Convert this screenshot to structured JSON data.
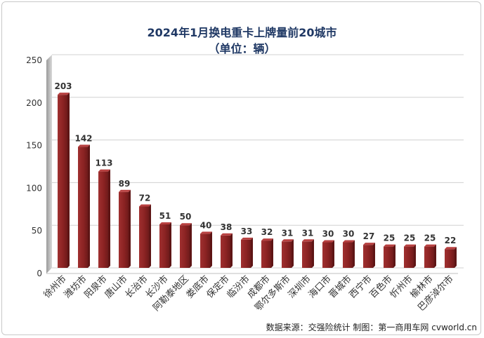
{
  "chart_data": {
    "type": "bar",
    "title": "2024年1月换电重卡上牌量前20城市",
    "subtitle": "（单位：辆）",
    "categories": [
      "徐州市",
      "潍坊市",
      "阳泉市",
      "唐山市",
      "长治市",
      "长沙市",
      "阿勒泰地区",
      "娄底市",
      "保定市",
      "临汾市",
      "成都市",
      "鄂尔多斯市",
      "深圳市",
      "海口市",
      "晋城市",
      "西宁市",
      "百色市",
      "忻州市",
      "榆林市",
      "巴彦淖尔市"
    ],
    "values": [
      203,
      142,
      113,
      89,
      72,
      51,
      50,
      40,
      38,
      33,
      32,
      31,
      31,
      30,
      30,
      27,
      25,
      25,
      25,
      22
    ],
    "ylim": [
      0,
      250
    ],
    "yticks": [
      0,
      50,
      100,
      150,
      200,
      250
    ],
    "xlabel": "",
    "ylabel": "",
    "grid": true,
    "bar_color": "#8b2323"
  },
  "source_note": "数据来源：交强险统计   制图：第一商用车网 cvworld.cn"
}
